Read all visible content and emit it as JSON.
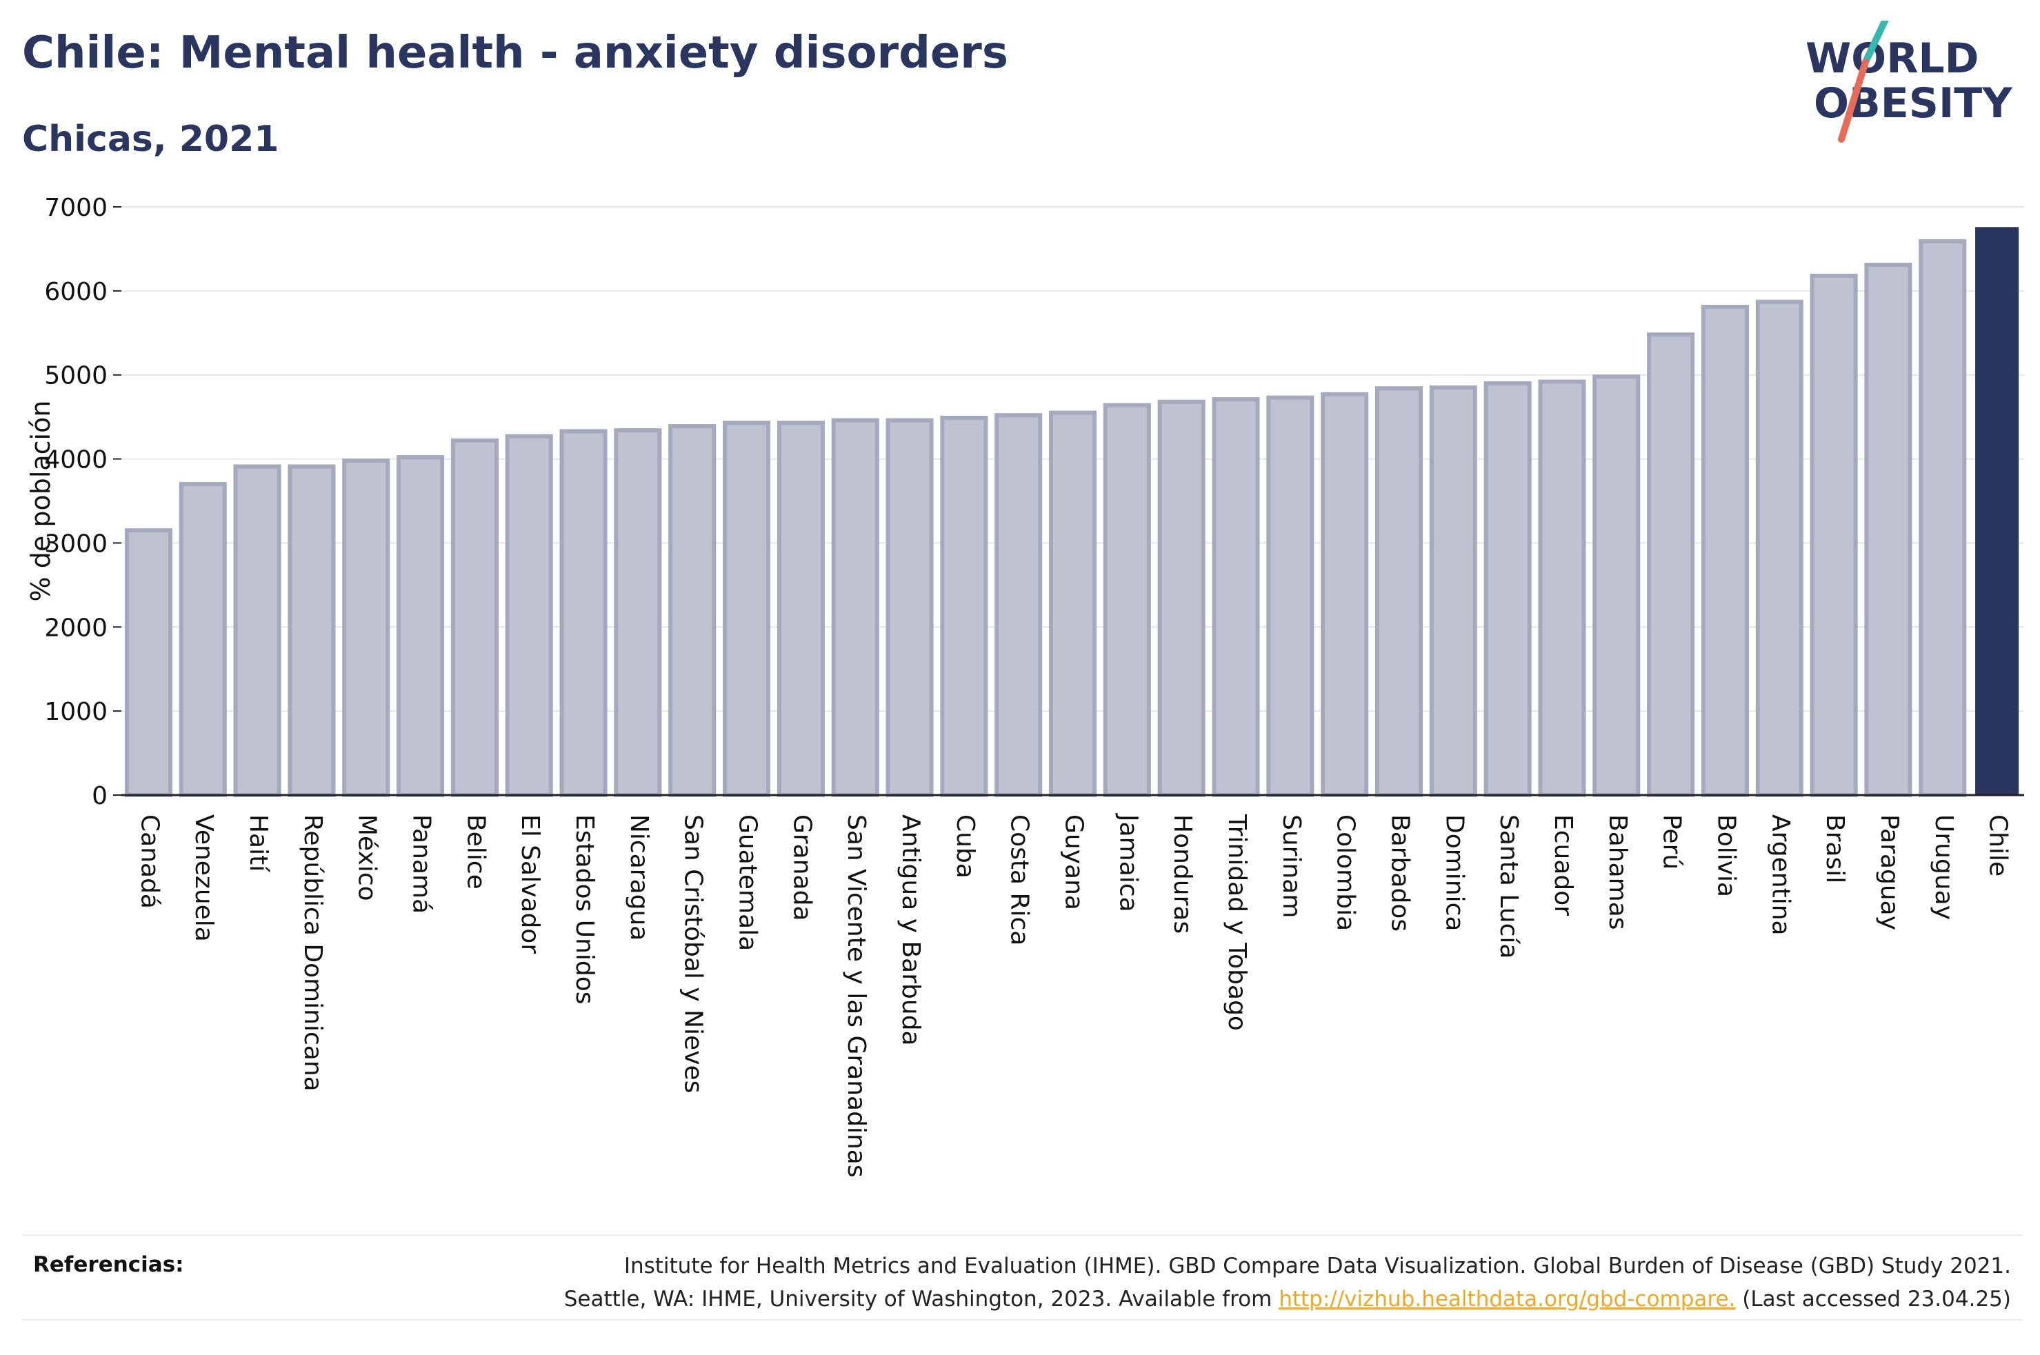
{
  "header": {
    "title": "Chile: Mental health - anxiety disorders",
    "subtitle": "Chicas, 2021"
  },
  "logo": {
    "line1": "WORLD",
    "line2": "OBESITY",
    "colors": {
      "text": "#2b3660",
      "slash_teal": "#36b7b0",
      "slash_red": "#e86b5a"
    }
  },
  "colors": {
    "bar_fill": "#bfc2d0",
    "bar_stroke": "#a5a9bd",
    "highlight": "#2b3660",
    "grid": "#e6e6ea",
    "axis": "#222222"
  },
  "chart_data": {
    "type": "bar",
    "title": "Chile: Mental health - anxiety disorders",
    "subtitle": "Chicas, 2021",
    "xlabel": "",
    "ylabel": "% de población",
    "ylim": [
      0,
      7000
    ],
    "yticks": [
      0,
      1000,
      2000,
      3000,
      4000,
      5000,
      6000,
      7000
    ],
    "grid": true,
    "highlight": "Chile",
    "categories": [
      "Canadá",
      "Venezuela",
      "Haití",
      "República Dominicana",
      "México",
      "Panamá",
      "Belice",
      "El Salvador",
      "Estados Unidos",
      "Nicaragua",
      "San Cristóbal y Nieves",
      "Guatemala",
      "Granada",
      "San Vicente y las Granadinas",
      "Antigua y Barbuda",
      "Cuba",
      "Costa Rica",
      "Guyana",
      "Jamaica",
      "Honduras",
      "Trinidad y Tobago",
      "Surinam",
      "Colombia",
      "Barbados",
      "Dominica",
      "Santa Lucía",
      "Ecuador",
      "Bahamas",
      "Perú",
      "Bolivia",
      "Argentina",
      "Brasil",
      "Paraguay",
      "Uruguay",
      "Chile"
    ],
    "values": [
      3150,
      3700,
      3910,
      3910,
      3980,
      4020,
      4220,
      4270,
      4330,
      4340,
      4390,
      4430,
      4430,
      4460,
      4460,
      4490,
      4520,
      4550,
      4640,
      4680,
      4710,
      4730,
      4770,
      4840,
      4850,
      4900,
      4920,
      4980,
      5480,
      5810,
      5870,
      6180,
      6310,
      6590,
      6760
    ]
  },
  "footer": {
    "ref_label": "Referencias:",
    "ref_line1": "Institute for Health Metrics and Evaluation (IHME). GBD Compare Data Visualization. Global Burden of Disease (GBD) Study 2021.",
    "ref_line2_pre": "Seattle, WA: IHME, University of Washington, 2023. Available from ",
    "ref_link": "http://vizhub.healthdata.org/gbd-compare.",
    "ref_line2_post": " (Last accessed 23.04.25)"
  }
}
